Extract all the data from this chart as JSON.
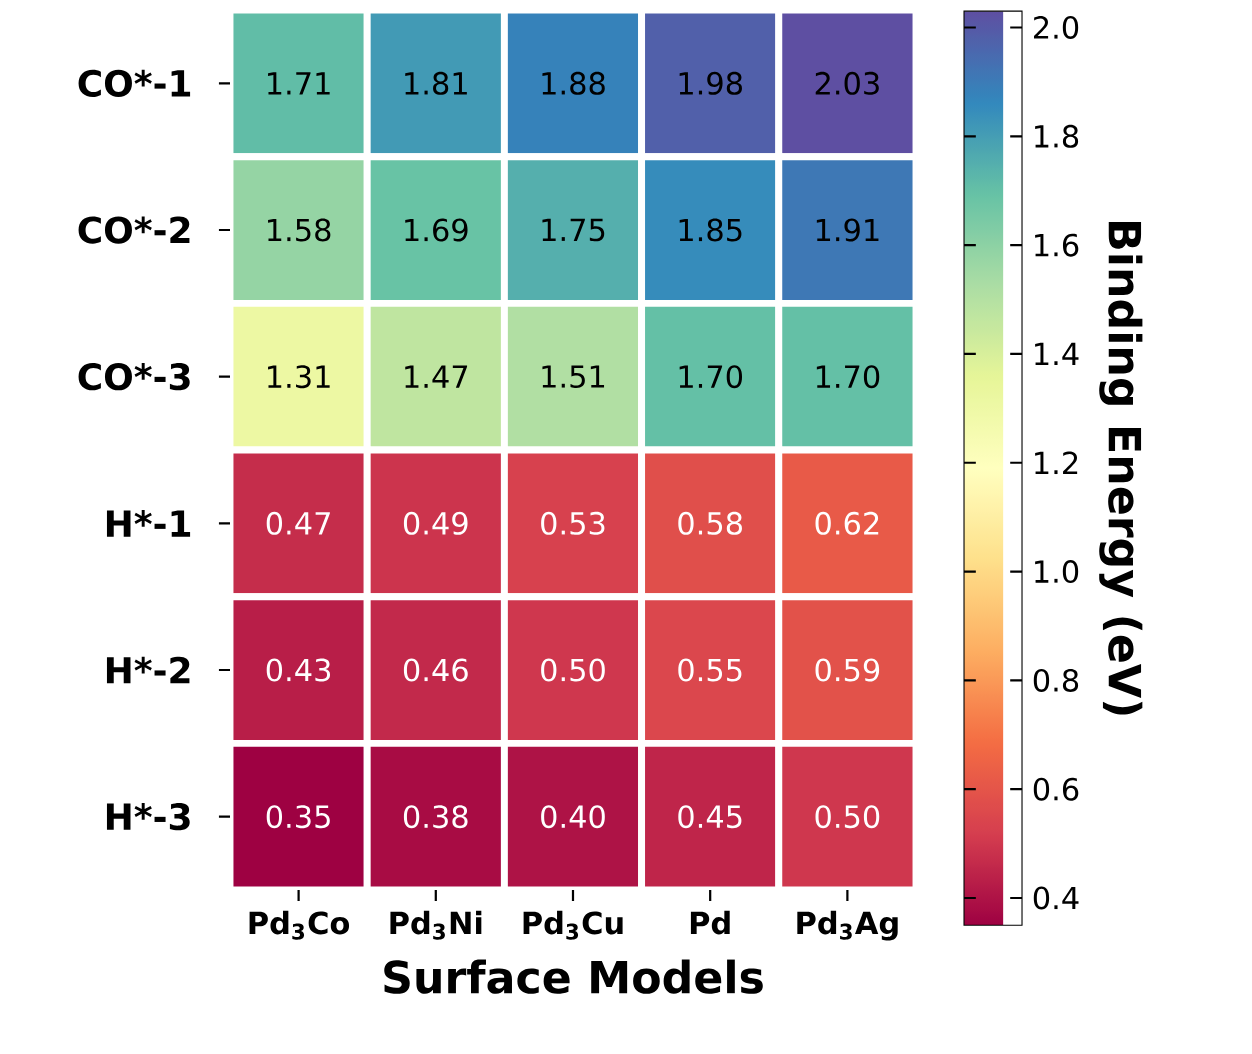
{
  "chart_data": {
    "type": "heatmap",
    "xlabel": "Surface Models",
    "clabel": "Binding Energy (eV)",
    "categories": [
      "Pd$_{3}$Co",
      "Pd$_{3}$Ni",
      "Pd$_{3}$Cu",
      "Pd",
      "Pd$_{3}$Ag"
    ],
    "y_categories": [
      "CO*-1",
      "CO*-2",
      "CO*-3",
      "H*-1",
      "H*-2",
      "H*-3"
    ],
    "cells": [
      [
        1.71,
        1.81,
        1.88,
        1.98,
        2.03
      ],
      [
        1.58,
        1.69,
        1.75,
        1.85,
        1.91
      ],
      [
        1.31,
        1.47,
        1.51,
        1.7,
        1.7
      ],
      [
        0.47,
        0.49,
        0.53,
        0.58,
        0.62
      ],
      [
        0.43,
        0.46,
        0.5,
        0.55,
        0.59
      ],
      [
        0.35,
        0.38,
        0.4,
        0.45,
        0.5
      ]
    ],
    "cell_labels": [
      [
        "1.71",
        "1.81",
        "1.88",
        "1.98",
        "2.03"
      ],
      [
        "1.58",
        "1.69",
        "1.75",
        "1.85",
        "1.91"
      ],
      [
        "1.31",
        "1.47",
        "1.51",
        "1.70",
        "1.70"
      ],
      [
        "0.47",
        "0.49",
        "0.53",
        "0.58",
        "0.62"
      ],
      [
        "0.43",
        "0.46",
        "0.50",
        "0.55",
        "0.59"
      ],
      [
        "0.35",
        "0.38",
        "0.40",
        "0.45",
        "0.50"
      ]
    ],
    "clim": [
      0.35,
      2.03
    ],
    "cticks": [
      0.4,
      0.6,
      0.8,
      {
        "value": 1.0,
        "label": "1.0"
      },
      1.2,
      1.4,
      1.6,
      1.8,
      {
        "value": 2.0,
        "label": "2.0"
      }
    ]
  }
}
